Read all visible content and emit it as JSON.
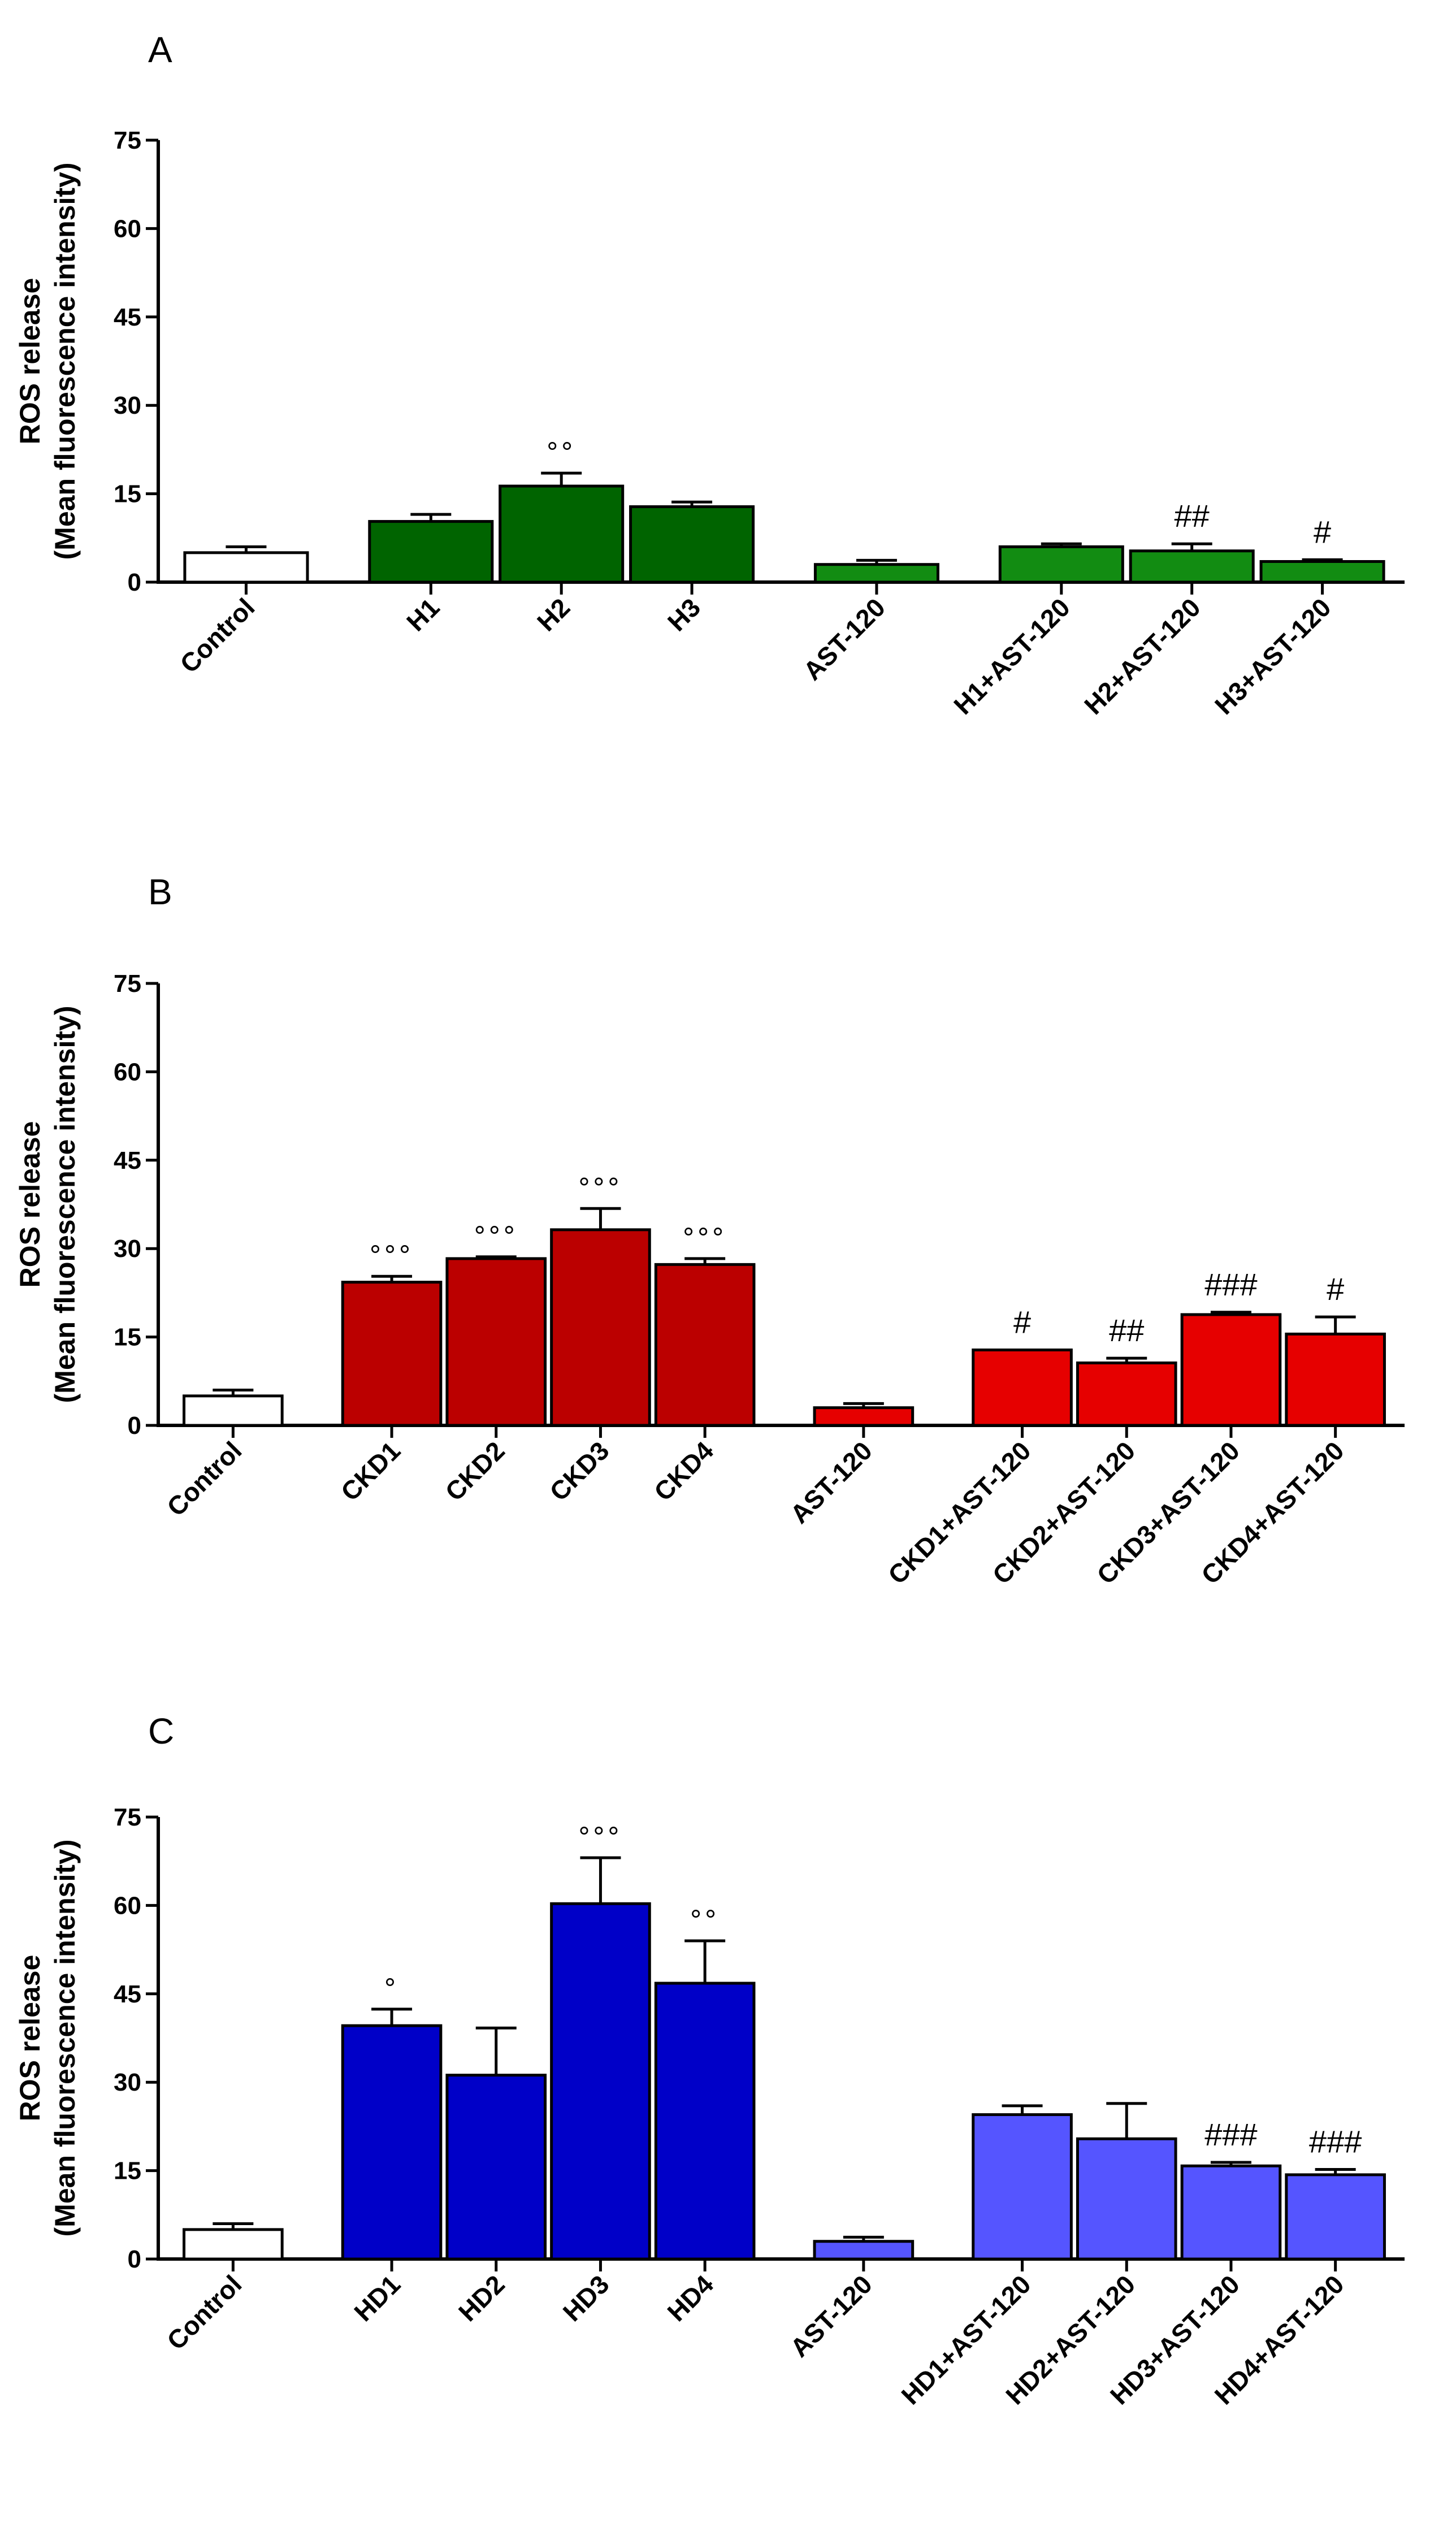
{
  "chart_data": [
    {
      "type": "bar",
      "panel": "A",
      "ylabel": [
        "ROS release",
        "(Mean fluorescence intensity)"
      ],
      "ylim": [
        0,
        75
      ],
      "yticks": [
        0,
        15,
        30,
        45,
        60,
        75
      ],
      "grid": false,
      "categories": [
        "Control",
        "H1",
        "H2",
        "H3",
        "AST-120",
        "H1+AST-120",
        "H2+AST-120",
        "H3+AST-120"
      ],
      "values": [
        5.0,
        10.3,
        16.3,
        12.8,
        3.0,
        6.0,
        5.3,
        3.5
      ],
      "errors": [
        1.0,
        1.2,
        2.2,
        0.8,
        0.7,
        0.5,
        1.2,
        0.3
      ],
      "colors": [
        "#ffffff",
        "#006400",
        "#006400",
        "#006400",
        "#128c12",
        "#128c12",
        "#128c12",
        "#128c12"
      ],
      "annotations": [
        "",
        "",
        "°°",
        "",
        "",
        "",
        "##",
        "#"
      ],
      "groups": [
        1,
        3,
        1,
        3
      ]
    },
    {
      "type": "bar",
      "panel": "B",
      "ylabel": [
        "ROS release",
        "(Mean fluorescence intensity)"
      ],
      "ylim": [
        0,
        75
      ],
      "yticks": [
        0,
        15,
        30,
        45,
        60,
        75
      ],
      "grid": false,
      "categories": [
        "Control",
        "CKD1",
        "CKD2",
        "CKD3",
        "CKD4",
        "AST-120",
        "CKD1+AST-120",
        "CKD2+AST-120",
        "CKD3+AST-120",
        "CKD4+AST-120"
      ],
      "values": [
        5.0,
        24.3,
        28.3,
        33.2,
        27.3,
        3.0,
        12.8,
        10.6,
        18.8,
        15.5
      ],
      "errors": [
        1.0,
        1.0,
        0.3,
        3.6,
        1.0,
        0.7,
        0.0,
        0.8,
        0.4,
        2.9
      ],
      "colors": [
        "#ffffff",
        "#bb0000",
        "#bb0000",
        "#bb0000",
        "#bb0000",
        "#e60000",
        "#e60000",
        "#e60000",
        "#e60000",
        "#e60000"
      ],
      "annotations": [
        "",
        "°°°",
        "°°°",
        "°°°",
        "°°°",
        "",
        "#",
        "##",
        "###",
        "#"
      ],
      "groups": [
        1,
        4,
        1,
        4
      ]
    },
    {
      "type": "bar",
      "panel": "C",
      "ylabel": [
        "ROS release",
        "(Mean fluorescence intensity)"
      ],
      "ylim": [
        0,
        75
      ],
      "yticks": [
        0,
        15,
        30,
        45,
        60,
        75
      ],
      "grid": false,
      "categories": [
        "Control",
        "HD1",
        "HD2",
        "HD3",
        "HD4",
        "AST-120",
        "HD1+AST-120",
        "HD2+AST-120",
        "HD3+AST-120",
        "HD4+AST-120"
      ],
      "values": [
        5.0,
        39.6,
        31.2,
        60.3,
        46.8,
        3.0,
        24.5,
        20.4,
        15.8,
        14.3
      ],
      "errors": [
        1.0,
        2.8,
        8.0,
        7.8,
        7.2,
        0.7,
        1.5,
        6.0,
        0.6,
        0.9
      ],
      "colors": [
        "#ffffff",
        "#0000c8",
        "#0000c8",
        "#0000c8",
        "#0000c8",
        "#5555ff",
        "#5555ff",
        "#5555ff",
        "#5555ff",
        "#5555ff"
      ],
      "annotations": [
        "",
        "°",
        "",
        "°°°",
        "°°",
        "",
        "",
        "",
        "###",
        "###"
      ],
      "groups": [
        1,
        4,
        1,
        4
      ]
    }
  ]
}
